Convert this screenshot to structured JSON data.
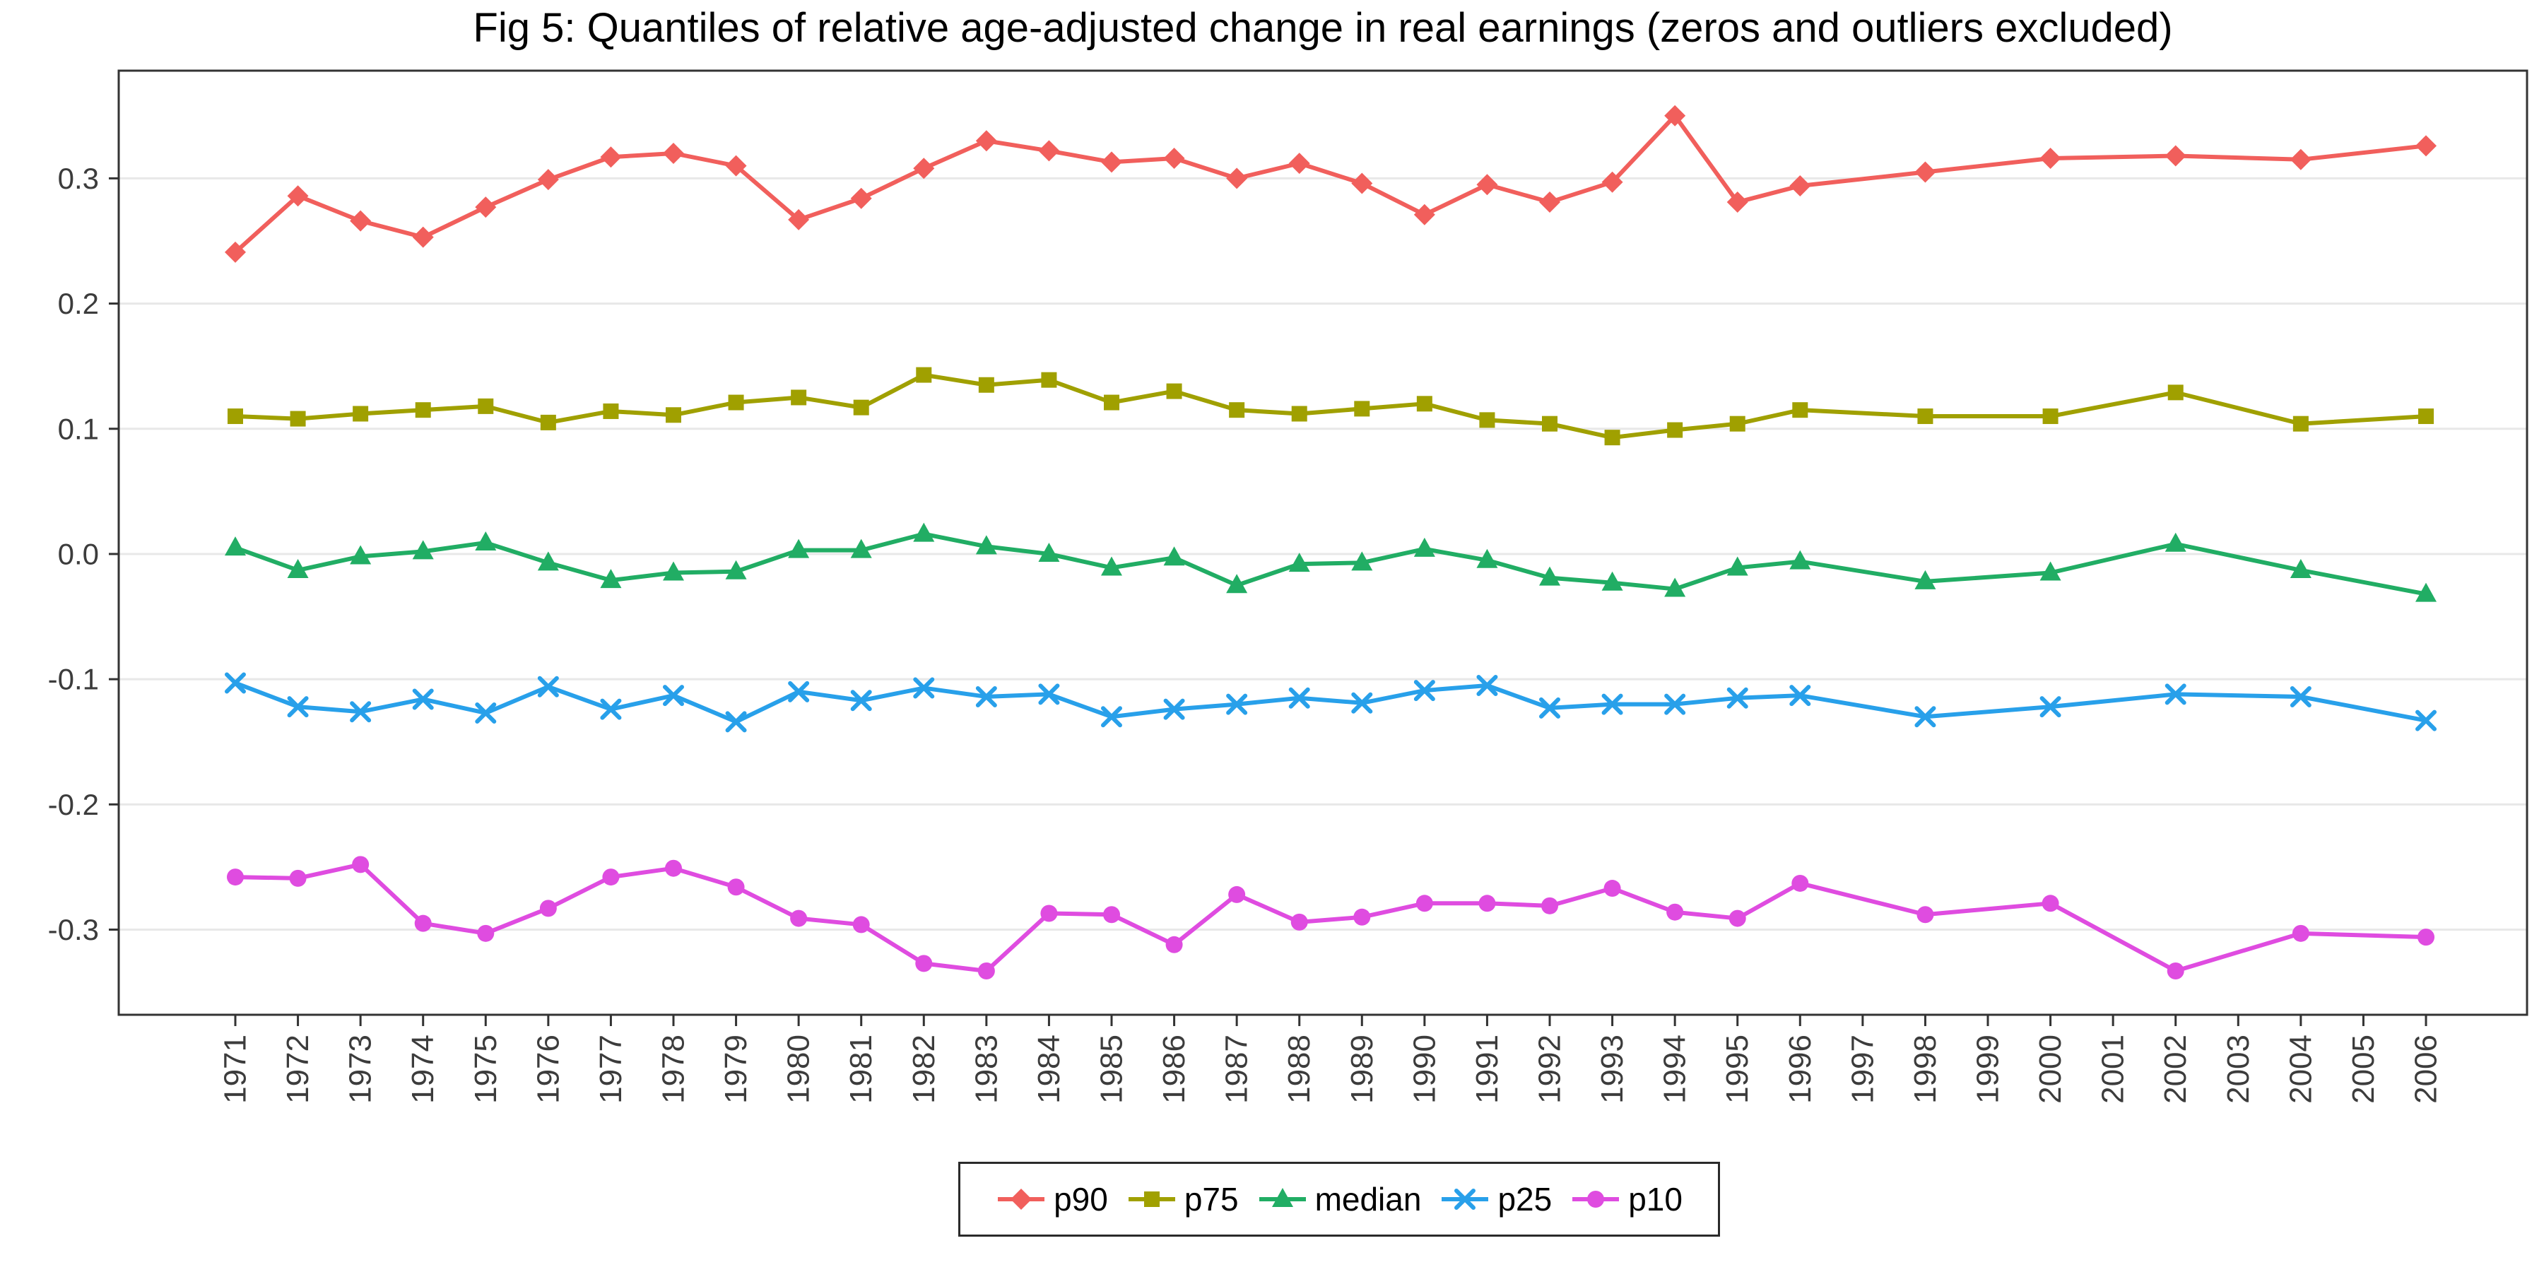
{
  "chart_data": {
    "type": "line",
    "title": "Fig 5: Quantiles of relative age-adjusted change in real earnings (zeros and outliers excluded)",
    "xlabel": "",
    "ylabel": "",
    "grid": "horizontal",
    "legend_position": "bottom-center",
    "ylim": [
      -0.368,
      0.386
    ],
    "yticks": [
      0.3,
      0.2,
      0.1,
      0.0,
      -0.1,
      -0.2,
      -0.3
    ],
    "ytick_labels": [
      "0.3",
      "0.2",
      "0.1",
      "0.0",
      "-0.1",
      "-0.2",
      "-0.3"
    ],
    "x_axis_tick_labels": [
      "1971",
      "1972",
      "1973",
      "1974",
      "1975",
      "1976",
      "1977",
      "1978",
      "1979",
      "1980",
      "1981",
      "1982",
      "1983",
      "1984",
      "1985",
      "1986",
      "1987",
      "1988",
      "1989",
      "1990",
      "1991",
      "1992",
      "1993",
      "1994",
      "1995",
      "1996",
      "1997",
      "1998",
      "1999",
      "2000",
      "2001",
      "2002",
      "2003",
      "2004",
      "2005",
      "2006"
    ],
    "x": [
      1971,
      1972,
      1973,
      1974,
      1975,
      1976,
      1977,
      1978,
      1979,
      1980,
      1981,
      1982,
      1983,
      1984,
      1985,
      1986,
      1987,
      1988,
      1989,
      1990,
      1991,
      1992,
      1993,
      1994,
      1995,
      1996,
      1998,
      2000,
      2002,
      2004,
      2006
    ],
    "series": [
      {
        "name": "p90",
        "marker": "diamond",
        "color": "#F15F5C",
        "values": [
          0.241,
          0.286,
          0.266,
          0.253,
          0.277,
          0.299,
          0.317,
          0.32,
          0.31,
          0.267,
          0.284,
          0.308,
          0.33,
          0.322,
          0.313,
          0.316,
          0.3,
          0.312,
          0.296,
          0.271,
          0.295,
          0.281,
          0.297,
          0.35,
          0.281,
          0.294,
          0.305,
          0.316,
          0.318,
          0.315,
          0.326
        ]
      },
      {
        "name": "p75",
        "marker": "square",
        "color": "#A0A000",
        "values": [
          0.11,
          0.108,
          0.112,
          0.115,
          0.118,
          0.105,
          0.114,
          0.111,
          0.121,
          0.125,
          0.117,
          0.143,
          0.135,
          0.139,
          0.121,
          0.13,
          0.115,
          0.112,
          0.116,
          0.12,
          0.107,
          0.104,
          0.093,
          0.099,
          0.104,
          0.115,
          0.11,
          0.11,
          0.129,
          0.104,
          0.11
        ]
      },
      {
        "name": "median",
        "marker": "triangle",
        "color": "#21AD64",
        "values": [
          0.005,
          -0.013,
          -0.002,
          0.002,
          0.009,
          -0.007,
          -0.021,
          -0.015,
          -0.014,
          0.003,
          0.003,
          0.016,
          0.006,
          0.0,
          -0.011,
          -0.003,
          -0.025,
          -0.008,
          -0.007,
          0.004,
          -0.005,
          -0.019,
          -0.023,
          -0.028,
          -0.011,
          -0.006,
          -0.022,
          -0.015,
          0.008,
          -0.013,
          -0.032
        ]
      },
      {
        "name": "p25",
        "marker": "x",
        "color": "#28A0EA",
        "values": [
          -0.103,
          -0.122,
          -0.126,
          -0.116,
          -0.127,
          -0.106,
          -0.124,
          -0.113,
          -0.134,
          -0.11,
          -0.117,
          -0.107,
          -0.114,
          -0.112,
          -0.13,
          -0.124,
          -0.12,
          -0.115,
          -0.119,
          -0.109,
          -0.105,
          -0.123,
          -0.12,
          -0.12,
          -0.115,
          -0.113,
          -0.13,
          -0.122,
          -0.112,
          -0.114,
          -0.133
        ]
      },
      {
        "name": "p10",
        "marker": "circle",
        "color": "#DF4CE0",
        "values": [
          -0.258,
          -0.259,
          -0.248,
          -0.295,
          -0.303,
          -0.283,
          -0.258,
          -0.251,
          -0.266,
          -0.291,
          -0.296,
          -0.327,
          -0.333,
          -0.287,
          -0.288,
          -0.312,
          -0.272,
          -0.294,
          -0.29,
          -0.279,
          -0.279,
          -0.281,
          -0.267,
          -0.286,
          -0.291,
          -0.263,
          -0.288,
          -0.279,
          -0.333,
          -0.303,
          -0.306
        ]
      }
    ],
    "panel": {
      "border_color": "#333333",
      "gridline_color": "#E8E8E8",
      "tick_color": "#333333",
      "axis_text_color": "#3C3C3C"
    }
  }
}
